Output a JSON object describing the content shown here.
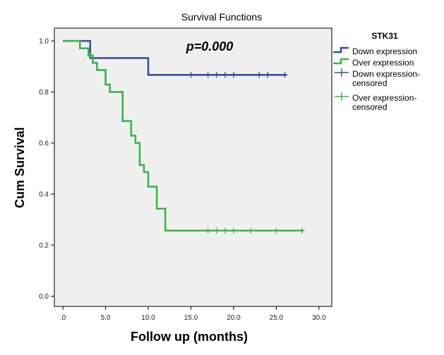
{
  "chart_data": {
    "type": "line",
    "title": "Survival Functions",
    "xlabel": "Follow up (months)",
    "ylabel": "Cum Survival",
    "xlim": [
      -1,
      31.5
    ],
    "ylim": [
      -0.04,
      1.05
    ],
    "xticks": [
      0,
      5,
      10,
      15,
      20,
      25,
      30
    ],
    "xtick_labels": [
      ".0",
      "5.0",
      "10.0",
      "15.0",
      "20.0",
      "25.0",
      "30.0"
    ],
    "yticks": [
      0,
      0.2,
      0.4,
      0.6,
      0.8,
      1.0
    ],
    "ytick_labels": [
      "0.0",
      "0.2",
      "0.4",
      "0.6",
      "0.8",
      "1.0"
    ],
    "grid": false,
    "annotation": "p=0.000",
    "legend": {
      "title": "STK31",
      "placement": "right",
      "entries": [
        {
          "lines": [
            "Down expression"
          ],
          "kind": "step",
          "color": "#3a4fa0"
        },
        {
          "lines": [
            "Over expression"
          ],
          "kind": "step",
          "color": "#3cb44b"
        },
        {
          "lines": [
            "Down expression-",
            "censored"
          ],
          "kind": "cross",
          "color": "#3a4fa0"
        },
        {
          "lines": [
            "Over expression-",
            "censored"
          ],
          "kind": "cross",
          "color": "#3cb44b"
        }
      ]
    },
    "series": [
      {
        "name": "Down expression",
        "color": "#3a4fa0",
        "steps": [
          [
            0,
            1.0
          ],
          [
            3.2,
            0.933
          ],
          [
            10,
            0.867
          ],
          [
            26.2,
            0.867
          ]
        ],
        "censored": [
          [
            15,
            0.867
          ],
          [
            17,
            0.867
          ],
          [
            18,
            0.867
          ],
          [
            19,
            0.867
          ],
          [
            20,
            0.867
          ],
          [
            23,
            0.867
          ],
          [
            24,
            0.867
          ],
          [
            26,
            0.867
          ]
        ]
      },
      {
        "name": "Over expression",
        "color": "#3cb44b",
        "steps": [
          [
            0,
            1.0
          ],
          [
            2,
            0.971
          ],
          [
            3,
            0.943
          ],
          [
            3.5,
            0.914
          ],
          [
            4,
            0.886
          ],
          [
            5,
            0.829
          ],
          [
            5.5,
            0.8
          ],
          [
            7,
            0.686
          ],
          [
            8,
            0.629
          ],
          [
            8.5,
            0.6
          ],
          [
            9,
            0.514
          ],
          [
            9.5,
            0.486
          ],
          [
            10,
            0.429
          ],
          [
            11,
            0.343
          ],
          [
            12,
            0.257
          ],
          [
            28.2,
            0.257
          ]
        ],
        "censored": [
          [
            3.2,
            0.943
          ],
          [
            17,
            0.257
          ],
          [
            18,
            0.257
          ],
          [
            19,
            0.257
          ],
          [
            20,
            0.257
          ],
          [
            22,
            0.257
          ],
          [
            25,
            0.257
          ],
          [
            28,
            0.257
          ]
        ]
      }
    ]
  }
}
